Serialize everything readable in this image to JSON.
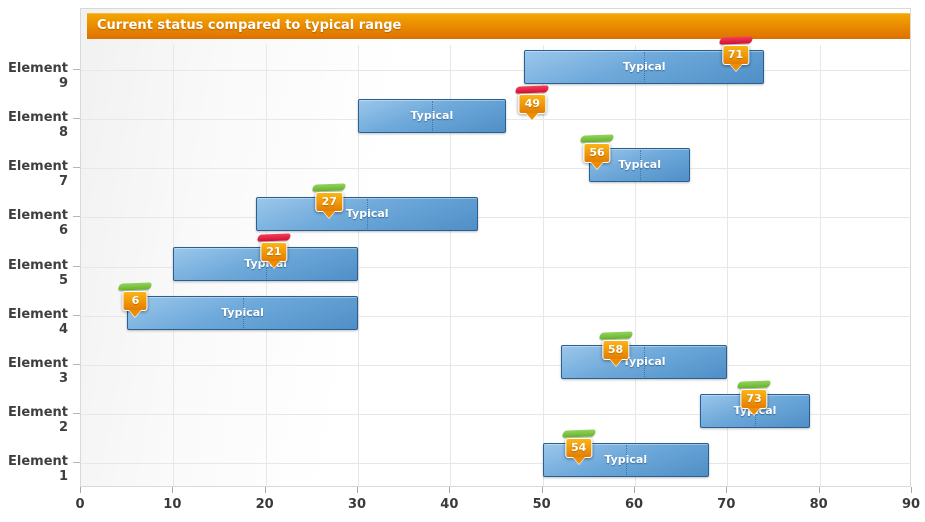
{
  "chart_data": {
    "type": "bar",
    "variant": "horizontal-range-with-current-marker",
    "title": "Current status compared to typical range",
    "xlabel": "",
    "ylabel": "",
    "xlim": [
      0,
      90
    ],
    "x_ticks": [
      0,
      10,
      20,
      30,
      40,
      50,
      60,
      70,
      80,
      90
    ],
    "grid": true,
    "legend": "none",
    "range_label": "Typical",
    "rows": [
      {
        "category": "Element 9",
        "range": [
          48,
          74
        ],
        "current": 71,
        "cap": "red"
      },
      {
        "category": "Element 8",
        "range": [
          30,
          46
        ],
        "current": 49,
        "cap": "red"
      },
      {
        "category": "Element 7",
        "range": [
          55,
          66
        ],
        "current": 56,
        "cap": "green"
      },
      {
        "category": "Element 6",
        "range": [
          19,
          43
        ],
        "current": 27,
        "cap": "green"
      },
      {
        "category": "Element 5",
        "range": [
          10,
          30
        ],
        "current": 21,
        "cap": "red"
      },
      {
        "category": "Element 4",
        "range": [
          5,
          30
        ],
        "current": 6,
        "cap": "green"
      },
      {
        "category": "Element 3",
        "range": [
          52,
          70
        ],
        "current": 58,
        "cap": "green"
      },
      {
        "category": "Element 2",
        "range": [
          67,
          79
        ],
        "current": 73,
        "cap": "green"
      },
      {
        "category": "Element 1",
        "range": [
          50,
          68
        ],
        "current": 54,
        "cap": "green"
      }
    ],
    "colors": {
      "title_bar_top": "#f5a700",
      "title_bar_bottom": "#de7000",
      "range_bar_light": "#9bc7eb",
      "range_bar_dark": "#4f8fc7",
      "range_bar_border": "#2a5f8f",
      "badge_top": "#fcb515",
      "badge_bottom": "#e37d00",
      "cap_red": "#d50f31",
      "cap_green": "#7cc73f",
      "gridline": "#e7e7e7"
    }
  }
}
